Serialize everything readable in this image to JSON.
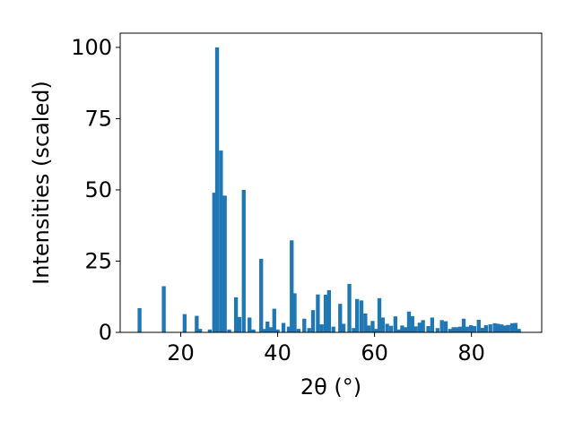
{
  "chart_data": {
    "type": "bar",
    "title": "",
    "xlabel": "2θ (°)",
    "ylabel": "Intensities (scaled)",
    "xlim": [
      7.5,
      94.5
    ],
    "ylim": [
      0,
      105
    ],
    "xticks": [
      20,
      40,
      60,
      80
    ],
    "yticks": [
      0,
      25,
      50,
      75,
      100
    ],
    "grid": false,
    "legend": "none",
    "bar_width": 0.8,
    "color": "#1f77b4",
    "x": [
      11.5,
      16.5,
      20.8,
      23.3,
      24.0,
      26.0,
      26.9,
      27.5,
      28.3,
      29.1,
      30.0,
      31.4,
      32.1,
      33.0,
      34.2,
      35.0,
      36.6,
      37.2,
      37.9,
      38.6,
      39.3,
      40.0,
      41.2,
      42.3,
      42.9,
      43.5,
      44.3,
      45.5,
      46.5,
      47.3,
      48.3,
      49.1,
      49.9,
      50.6,
      51.5,
      52.9,
      53.6,
      54.8,
      55.7,
      56.4,
      57.3,
      58.1,
      58.8,
      59.6,
      60.3,
      61.0,
      61.7,
      62.6,
      63.4,
      64.3,
      65.0,
      65.7,
      66.4,
      67.1,
      67.8,
      68.5,
      69.3,
      70.0,
      71.1,
      71.9,
      73.0,
      73.9,
      74.7,
      75.6,
      76.3,
      77.0,
      77.7,
      78.4,
      79.1,
      79.9,
      80.6,
      81.5,
      82.3,
      83.0,
      83.9,
      84.8,
      85.5,
      86.2,
      86.9,
      87.6,
      88.4,
      89.1,
      89.8
    ],
    "values": [
      8.5,
      16.2,
      6.4,
      5.8,
      1.2,
      1.0,
      49.0,
      100.0,
      63.8,
      48.0,
      1.0,
      12.3,
      5.4,
      50.0,
      5.2,
      1.0,
      25.8,
      1.2,
      3.8,
      1.8,
      8.3,
      1.0,
      3.3,
      2.0,
      32.3,
      13.7,
      1.2,
      4.8,
      1.5,
      7.8,
      13.3,
      2.8,
      13.2,
      14.8,
      2.0,
      10.0,
      3.0,
      17.0,
      1.5,
      11.7,
      11.2,
      6.6,
      2.4,
      4.0,
      1.2,
      12.0,
      5.2,
      3.0,
      2.3,
      5.6,
      1.0,
      2.4,
      1.8,
      7.3,
      5.7,
      2.1,
      3.4,
      4.3,
      2.2,
      5.2,
      1.5,
      4.3,
      3.9,
      1.2,
      1.8,
      1.8,
      2.0,
      4.8,
      2.0,
      2.5,
      2.2,
      4.4,
      1.6,
      2.5,
      2.8,
      3.2,
      3.0,
      2.8,
      2.4,
      2.6,
      3.2,
      3.3,
      1.2
    ]
  }
}
